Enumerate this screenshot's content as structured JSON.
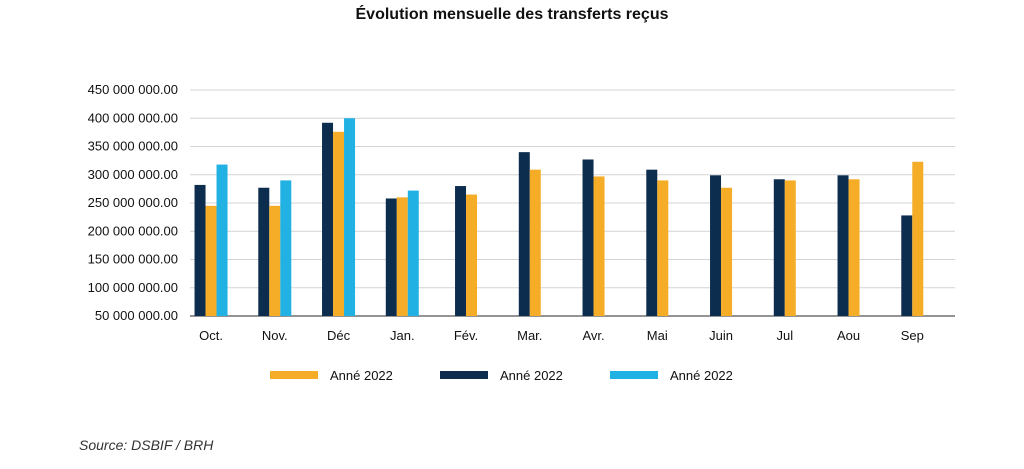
{
  "chart_data": {
    "type": "bar",
    "title": "Évolution mensuelle des transferts reçus",
    "xlabel": "",
    "ylabel": "",
    "ylim": [
      50000000,
      450000000
    ],
    "yticks": [
      50000000,
      100000000,
      150000000,
      200000000,
      250000000,
      300000000,
      350000000,
      400000000,
      450000000
    ],
    "ytick_labels": [
      "50 000 000.00",
      "100 000 000.00",
      "150 000 000.00",
      "200 000 000.00",
      "250 000 000.00",
      "300 000 000.00",
      "350 000 000.00",
      "400 000 000.00",
      "450 000 000.00"
    ],
    "categories": [
      "Oct.",
      "Nov.",
      "Déc",
      "Jan.",
      "Fév.",
      "Mar.",
      "Avr.",
      "Mai",
      "Juin",
      "Jul",
      "Aou",
      "Sep"
    ],
    "series": [
      {
        "name": "Anné 2022",
        "color": "#0d2d4f",
        "values": [
          282000000,
          277000000,
          392000000,
          258000000,
          280000000,
          340000000,
          327000000,
          309000000,
          299000000,
          292000000,
          299000000,
          228000000
        ]
      },
      {
        "name": "Anné 2022",
        "color": "#f5ad27",
        "values": [
          245000000,
          245000000,
          376000000,
          260000000,
          265000000,
          309000000,
          297000000,
          290000000,
          277000000,
          290000000,
          292000000,
          323000000
        ]
      },
      {
        "name": "Anné 2022",
        "color": "#21b1e3",
        "values": [
          318000000,
          290000000,
          400000000,
          272000000,
          null,
          null,
          null,
          null,
          null,
          null,
          null,
          null
        ]
      }
    ],
    "legend_order": [
      1,
      0,
      2
    ],
    "legend_position": "bottom"
  },
  "source": "Source: DSBIF / BRH"
}
